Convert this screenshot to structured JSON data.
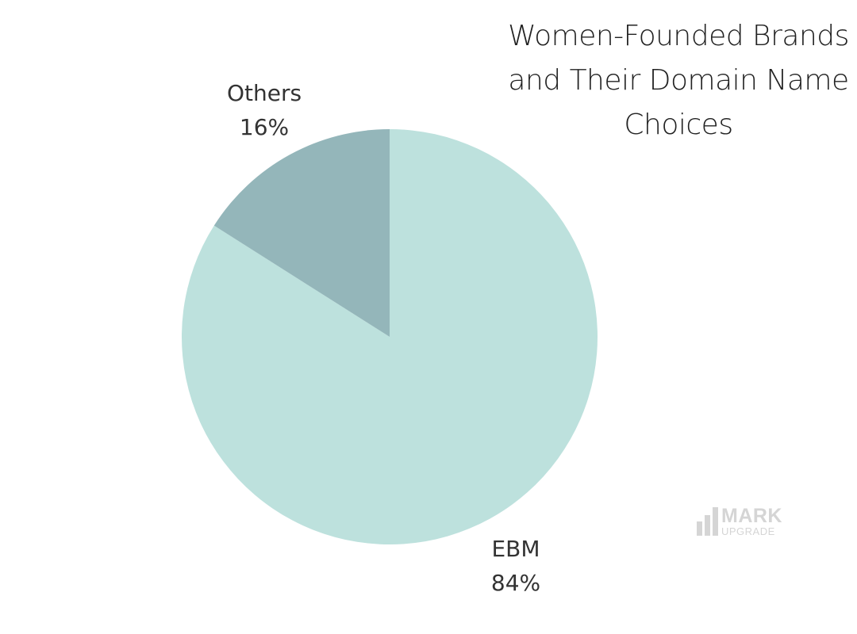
{
  "chart_data": {
    "type": "pie",
    "title_lines": [
      "Women-Founded Brands",
      "and Their Domain Name",
      "Choices"
    ],
    "slices": [
      {
        "label": "EBM",
        "value": 84,
        "value_label": "84%",
        "color": "#bde1dd"
      },
      {
        "label": "Others",
        "value": 16,
        "value_label": "16%",
        "color": "#94b6ba"
      }
    ],
    "start_angle_deg": 0,
    "direction": "clockwise"
  },
  "watermark": {
    "text_main": "MARK",
    "text_sub": "UPGRADE",
    "color": "#c7c7c7",
    "icon": "bar-chart-logo-icon"
  }
}
